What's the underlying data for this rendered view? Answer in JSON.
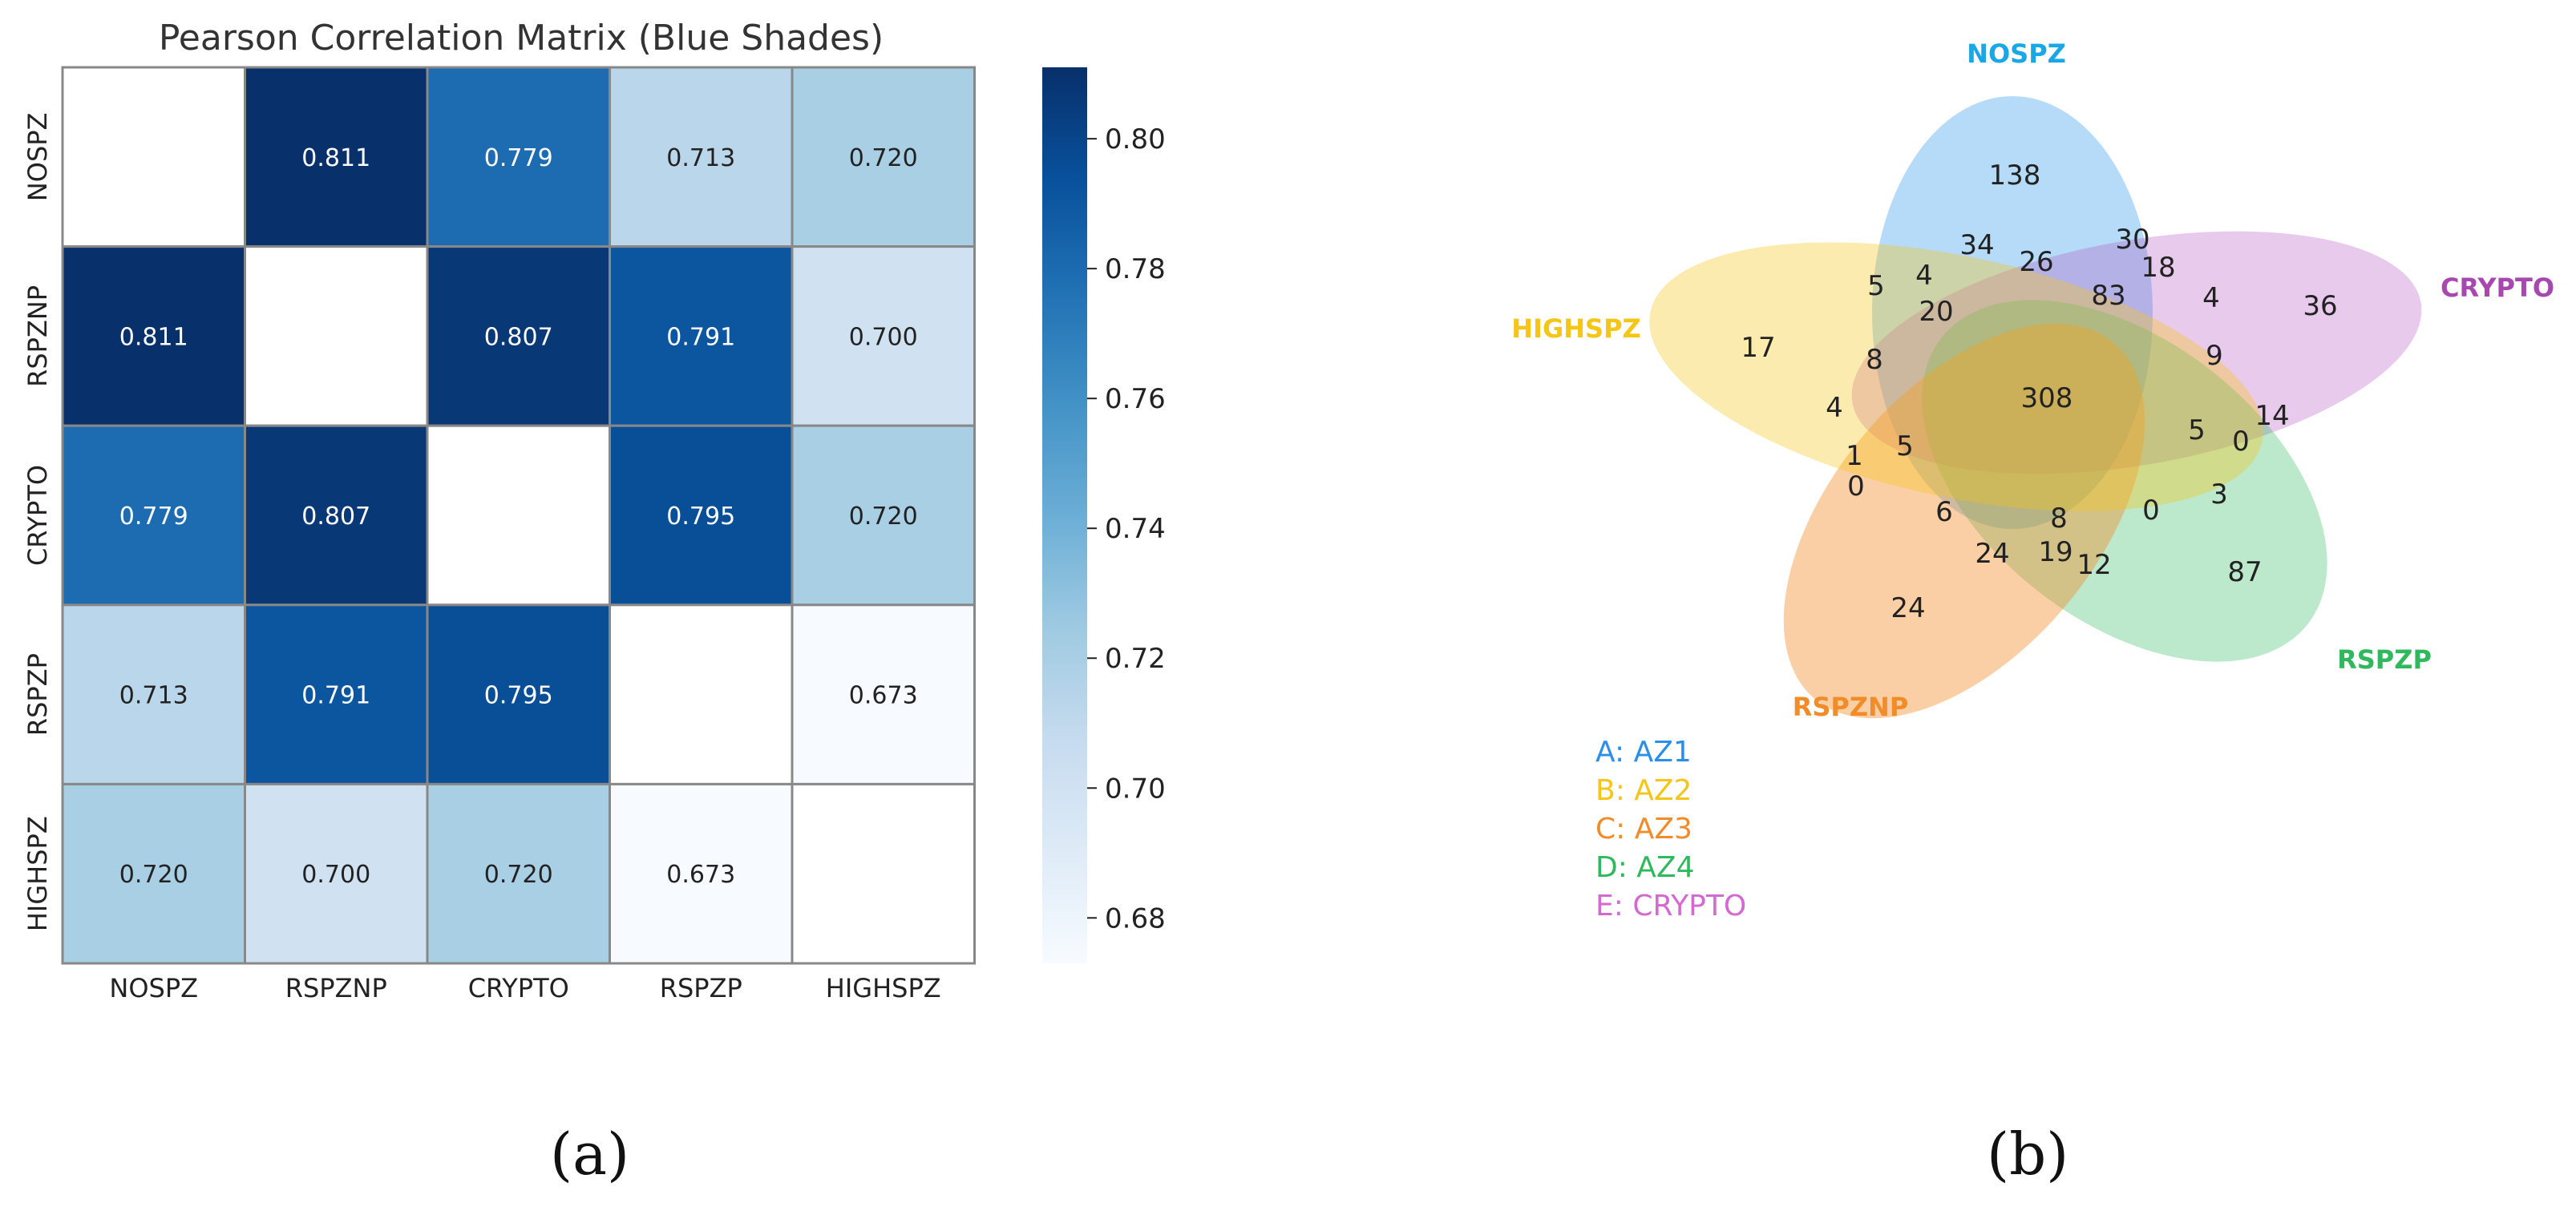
{
  "panels": {
    "a": {
      "caption": "(a)"
    },
    "b": {
      "caption": "(b)"
    }
  },
  "chart_data": [
    {
      "type": "heatmap",
      "title": "Pearson Correlation Matrix (Blue Shades)",
      "x_labels": [
        "NOSPZ",
        "RSPZNP",
        "CRYPTO",
        "RSPZP",
        "HIGHSPZ"
      ],
      "y_labels": [
        "NOSPZ",
        "RSPZNP",
        "CRYPTO",
        "RSPZP",
        "HIGHSPZ"
      ],
      "values": [
        [
          null,
          0.811,
          0.779,
          0.713,
          0.72
        ],
        [
          0.811,
          null,
          0.807,
          0.791,
          0.7
        ],
        [
          0.779,
          0.807,
          null,
          0.795,
          0.72
        ],
        [
          0.713,
          0.791,
          0.795,
          null,
          0.673
        ],
        [
          0.72,
          0.7,
          0.72,
          0.673,
          null
        ]
      ],
      "value_labels": [
        [
          "",
          "0.811",
          "0.779",
          "0.713",
          "0.720"
        ],
        [
          "0.811",
          "",
          "0.807",
          "0.791",
          "0.700"
        ],
        [
          "0.779",
          "0.807",
          "",
          "0.795",
          "0.720"
        ],
        [
          "0.713",
          "0.791",
          "0.795",
          "",
          "0.673"
        ],
        [
          "0.720",
          "0.700",
          "0.720",
          "0.673",
          ""
        ]
      ],
      "colorbar": {
        "min": 0.673,
        "max": 0.811,
        "ticks": [
          0.68,
          0.7,
          0.72,
          0.74,
          0.76,
          0.78,
          0.8
        ],
        "tick_labels": [
          "0.68",
          "0.70",
          "0.72",
          "0.74",
          "0.76",
          "0.78",
          "0.80"
        ],
        "colors": [
          "#f7fbff",
          "#deebf7",
          "#c6dbef",
          "#9ecae1",
          "#6baed6",
          "#4292c6",
          "#2171b5",
          "#08519c",
          "#08306b"
        ]
      }
    },
    {
      "type": "venn",
      "sets": [
        {
          "name": "NOSPZ",
          "color": "#1aa7e6"
        },
        {
          "name": "HIGHSPZ",
          "color": "#f5c518"
        },
        {
          "name": "RSPZNP",
          "color": "#f28c28"
        },
        {
          "name": "RSPZP",
          "color": "#2fb85c"
        },
        {
          "name": "CRYPTO",
          "color": "#a847b0"
        }
      ],
      "region_counts": [
        "138",
        "34",
        "26",
        "30",
        "5",
        "4",
        "20",
        "83",
        "18",
        "4",
        "36",
        "17",
        "8",
        "308",
        "9",
        "4",
        "14",
        "1",
        "5",
        "5",
        "0",
        "0",
        "6",
        "8",
        "0",
        "3",
        "24",
        "19",
        "12",
        "87",
        "24"
      ],
      "legend": [
        {
          "text": "A: AZ1",
          "color": "#2b8fe8"
        },
        {
          "text": "B: AZ2",
          "color": "#f5c518"
        },
        {
          "text": "C: AZ3",
          "color": "#f28c28"
        },
        {
          "text": "D: AZ4",
          "color": "#2fb85c"
        },
        {
          "text": "E: CRYPTO",
          "color": "#d26ad2"
        }
      ]
    }
  ]
}
